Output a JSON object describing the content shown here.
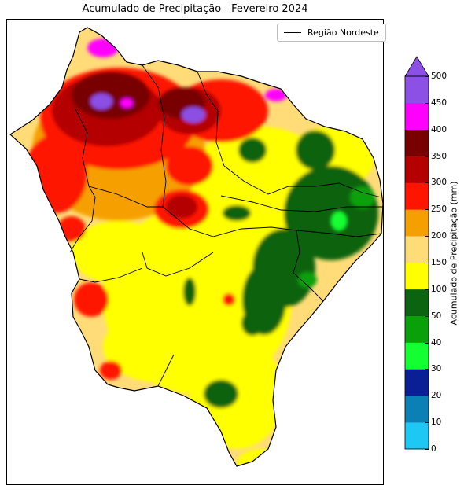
{
  "title": "Acumulado de Precipitação - Fevereiro 2024",
  "legend": {
    "label": "Região Nordeste",
    "line_color": "#000000"
  },
  "colorbar": {
    "label": "Acumulado de Precipitação (mm)",
    "ticks": [
      "0",
      "10",
      "20",
      "30",
      "40",
      "50",
      "100",
      "150",
      "200",
      "250",
      "300",
      "350",
      "400",
      "450",
      "500"
    ],
    "colors": [
      "#1ec8f5",
      "#0a80b4",
      "#0a1e96",
      "#14ff32",
      "#0aa00a",
      "#0a6410",
      "#ffff00",
      "#ffdc78",
      "#f5a000",
      "#ff1400",
      "#b40000",
      "#780000",
      "#ff00ff",
      "#8c50e6"
    ],
    "extend_color": "#8c50e6"
  },
  "map_colors": {
    "green_dark": "#0a6410",
    "green_mid": "#0aa00a",
    "green_light": "#14ff32",
    "yellow": "#ffff00",
    "light_orange": "#ffdc78",
    "orange": "#f5a000",
    "red": "#ff1400",
    "dark_red": "#b40000",
    "maroon": "#780000",
    "magenta": "#ff00ff",
    "purple": "#8c50e6"
  }
}
